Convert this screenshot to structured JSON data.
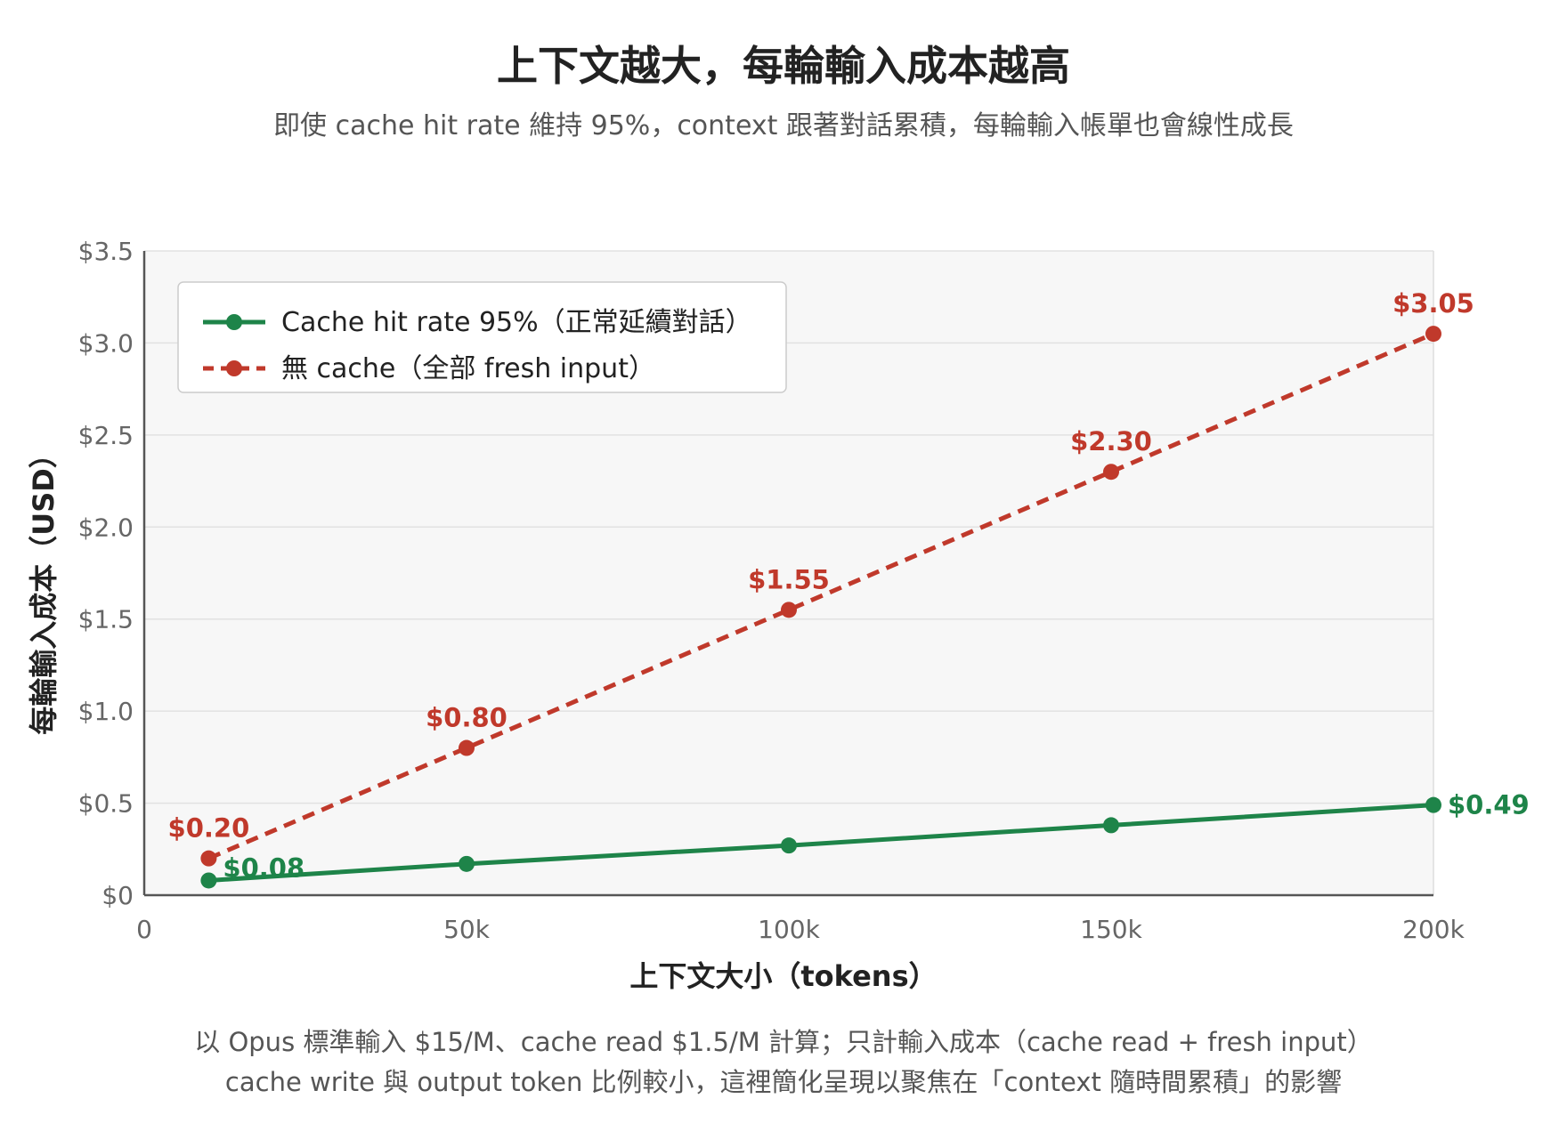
{
  "title": "上下文越大，每輪輸入成本越高",
  "subtitle": "即使 cache hit rate 維持 95%，context 跟著對話累積，每輪輸入帳單也會線性成長",
  "footnotes": [
    "以 Opus 標準輸入 $15/M、cache read $1.5/M 計算；只計輸入成本（cache read + fresh input）",
    "cache write 與 output token 比例較小，這裡簡化呈現以聚焦在「context 隨時間累積」的影響"
  ],
  "colors": {
    "green": "#1e8449",
    "red": "#c0392b",
    "plot_bg": "#f7f7f7",
    "grid": "#e2e2e2",
    "axis": "#555555",
    "tick_text": "#666666"
  },
  "chart_data": {
    "type": "line",
    "xlabel": "上下文大小（tokens）",
    "ylabel": "每輪輸入成本（USD）",
    "xlim": [
      0,
      200000
    ],
    "ylim": [
      0,
      3.5
    ],
    "x_ticks": [
      0,
      50000,
      100000,
      150000,
      200000
    ],
    "x_tick_labels": [
      "0",
      "50k",
      "100k",
      "150k",
      "200k"
    ],
    "y_ticks": [
      0,
      0.5,
      1.0,
      1.5,
      2.0,
      2.5,
      3.0,
      3.5
    ],
    "y_tick_labels": [
      "$0",
      "$0.5",
      "$1.0",
      "$1.5",
      "$2.0",
      "$2.5",
      "$3.0",
      "$3.5"
    ],
    "grid": true,
    "legend_position": "top-left",
    "series": [
      {
        "name": "Cache hit rate 95%（正常延續對話）",
        "color": "#1e8449",
        "style": "solid",
        "x": [
          10000,
          50000,
          100000,
          150000,
          200000
        ],
        "y": [
          0.08,
          0.17,
          0.27,
          0.38,
          0.49
        ],
        "labels": [
          "$0.08",
          "",
          "",
          "",
          "$0.49"
        ]
      },
      {
        "name": "無 cache（全部 fresh input）",
        "color": "#c0392b",
        "style": "dashed",
        "x": [
          10000,
          50000,
          100000,
          150000,
          200000
        ],
        "y": [
          0.2,
          0.8,
          1.55,
          2.3,
          3.05
        ],
        "labels": [
          "$0.20",
          "$0.80",
          "$1.55",
          "$2.30",
          "$3.05"
        ]
      }
    ]
  }
}
